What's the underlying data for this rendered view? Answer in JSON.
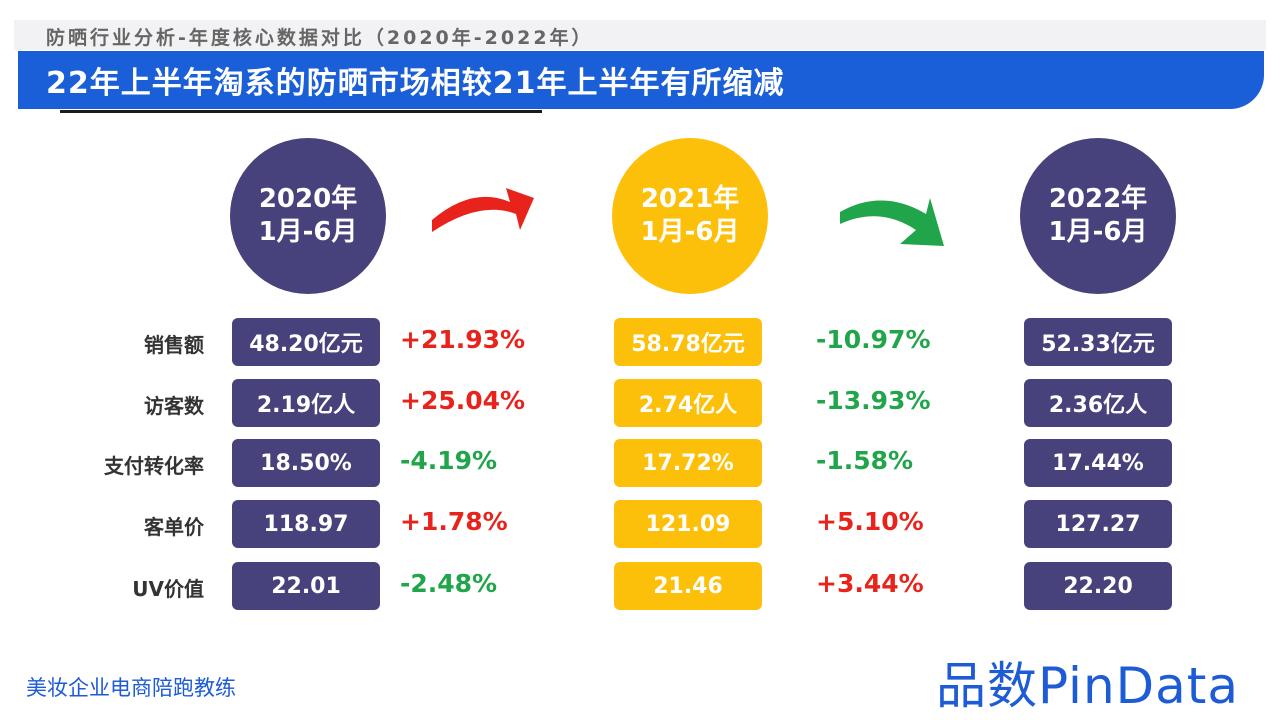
{
  "header": {
    "subtitle": "防晒行业分析-年度核心数据对比（2020年-2022年）",
    "title": "22年上半年淘系的防晒市场相较21年上半年有所缩减"
  },
  "periods": [
    {
      "line1": "2020年",
      "line2": "1月-6月"
    },
    {
      "line1": "2021年",
      "line2": "1月-6月"
    },
    {
      "line1": "2022年",
      "line2": "1月-6月"
    }
  ],
  "arrows": [
    {
      "direction": "up",
      "color": "#e8231b"
    },
    {
      "direction": "down",
      "color": "#20a54a"
    }
  ],
  "rows": [
    {
      "label": "销售额",
      "v2020": "48.20亿元",
      "c1": "+21.93%",
      "v2021": "58.78亿元",
      "c2": "-10.97%",
      "v2022": "52.33亿元"
    },
    {
      "label": "访客数",
      "v2020": "2.19亿人",
      "c1": "+25.04%",
      "v2021": "2.74亿人",
      "c2": "-13.93%",
      "v2022": "2.36亿人"
    },
    {
      "label": "支付转化率",
      "v2020": "18.50%",
      "c1": "-4.19%",
      "v2021": "17.72%",
      "c2": "-1.58%",
      "v2022": "17.44%"
    },
    {
      "label": "客单价",
      "v2020": "118.97",
      "c1": "+1.78%",
      "v2021": "121.09",
      "c2": "+5.10%",
      "v2022": "127.27"
    },
    {
      "label": "UV价值",
      "v2020": "22.01",
      "c1": "-2.48%",
      "v2021": "21.46",
      "c2": "+3.44%",
      "v2022": "22.20"
    }
  ],
  "footer": {
    "left": "美妆企业电商陪跑教练",
    "brand": "品数PinData"
  },
  "colors": {
    "banner": "#1a5fd8",
    "purple": "#47417c",
    "yellow": "#fcc00a",
    "up": "#e8231b",
    "down": "#20a54a"
  }
}
